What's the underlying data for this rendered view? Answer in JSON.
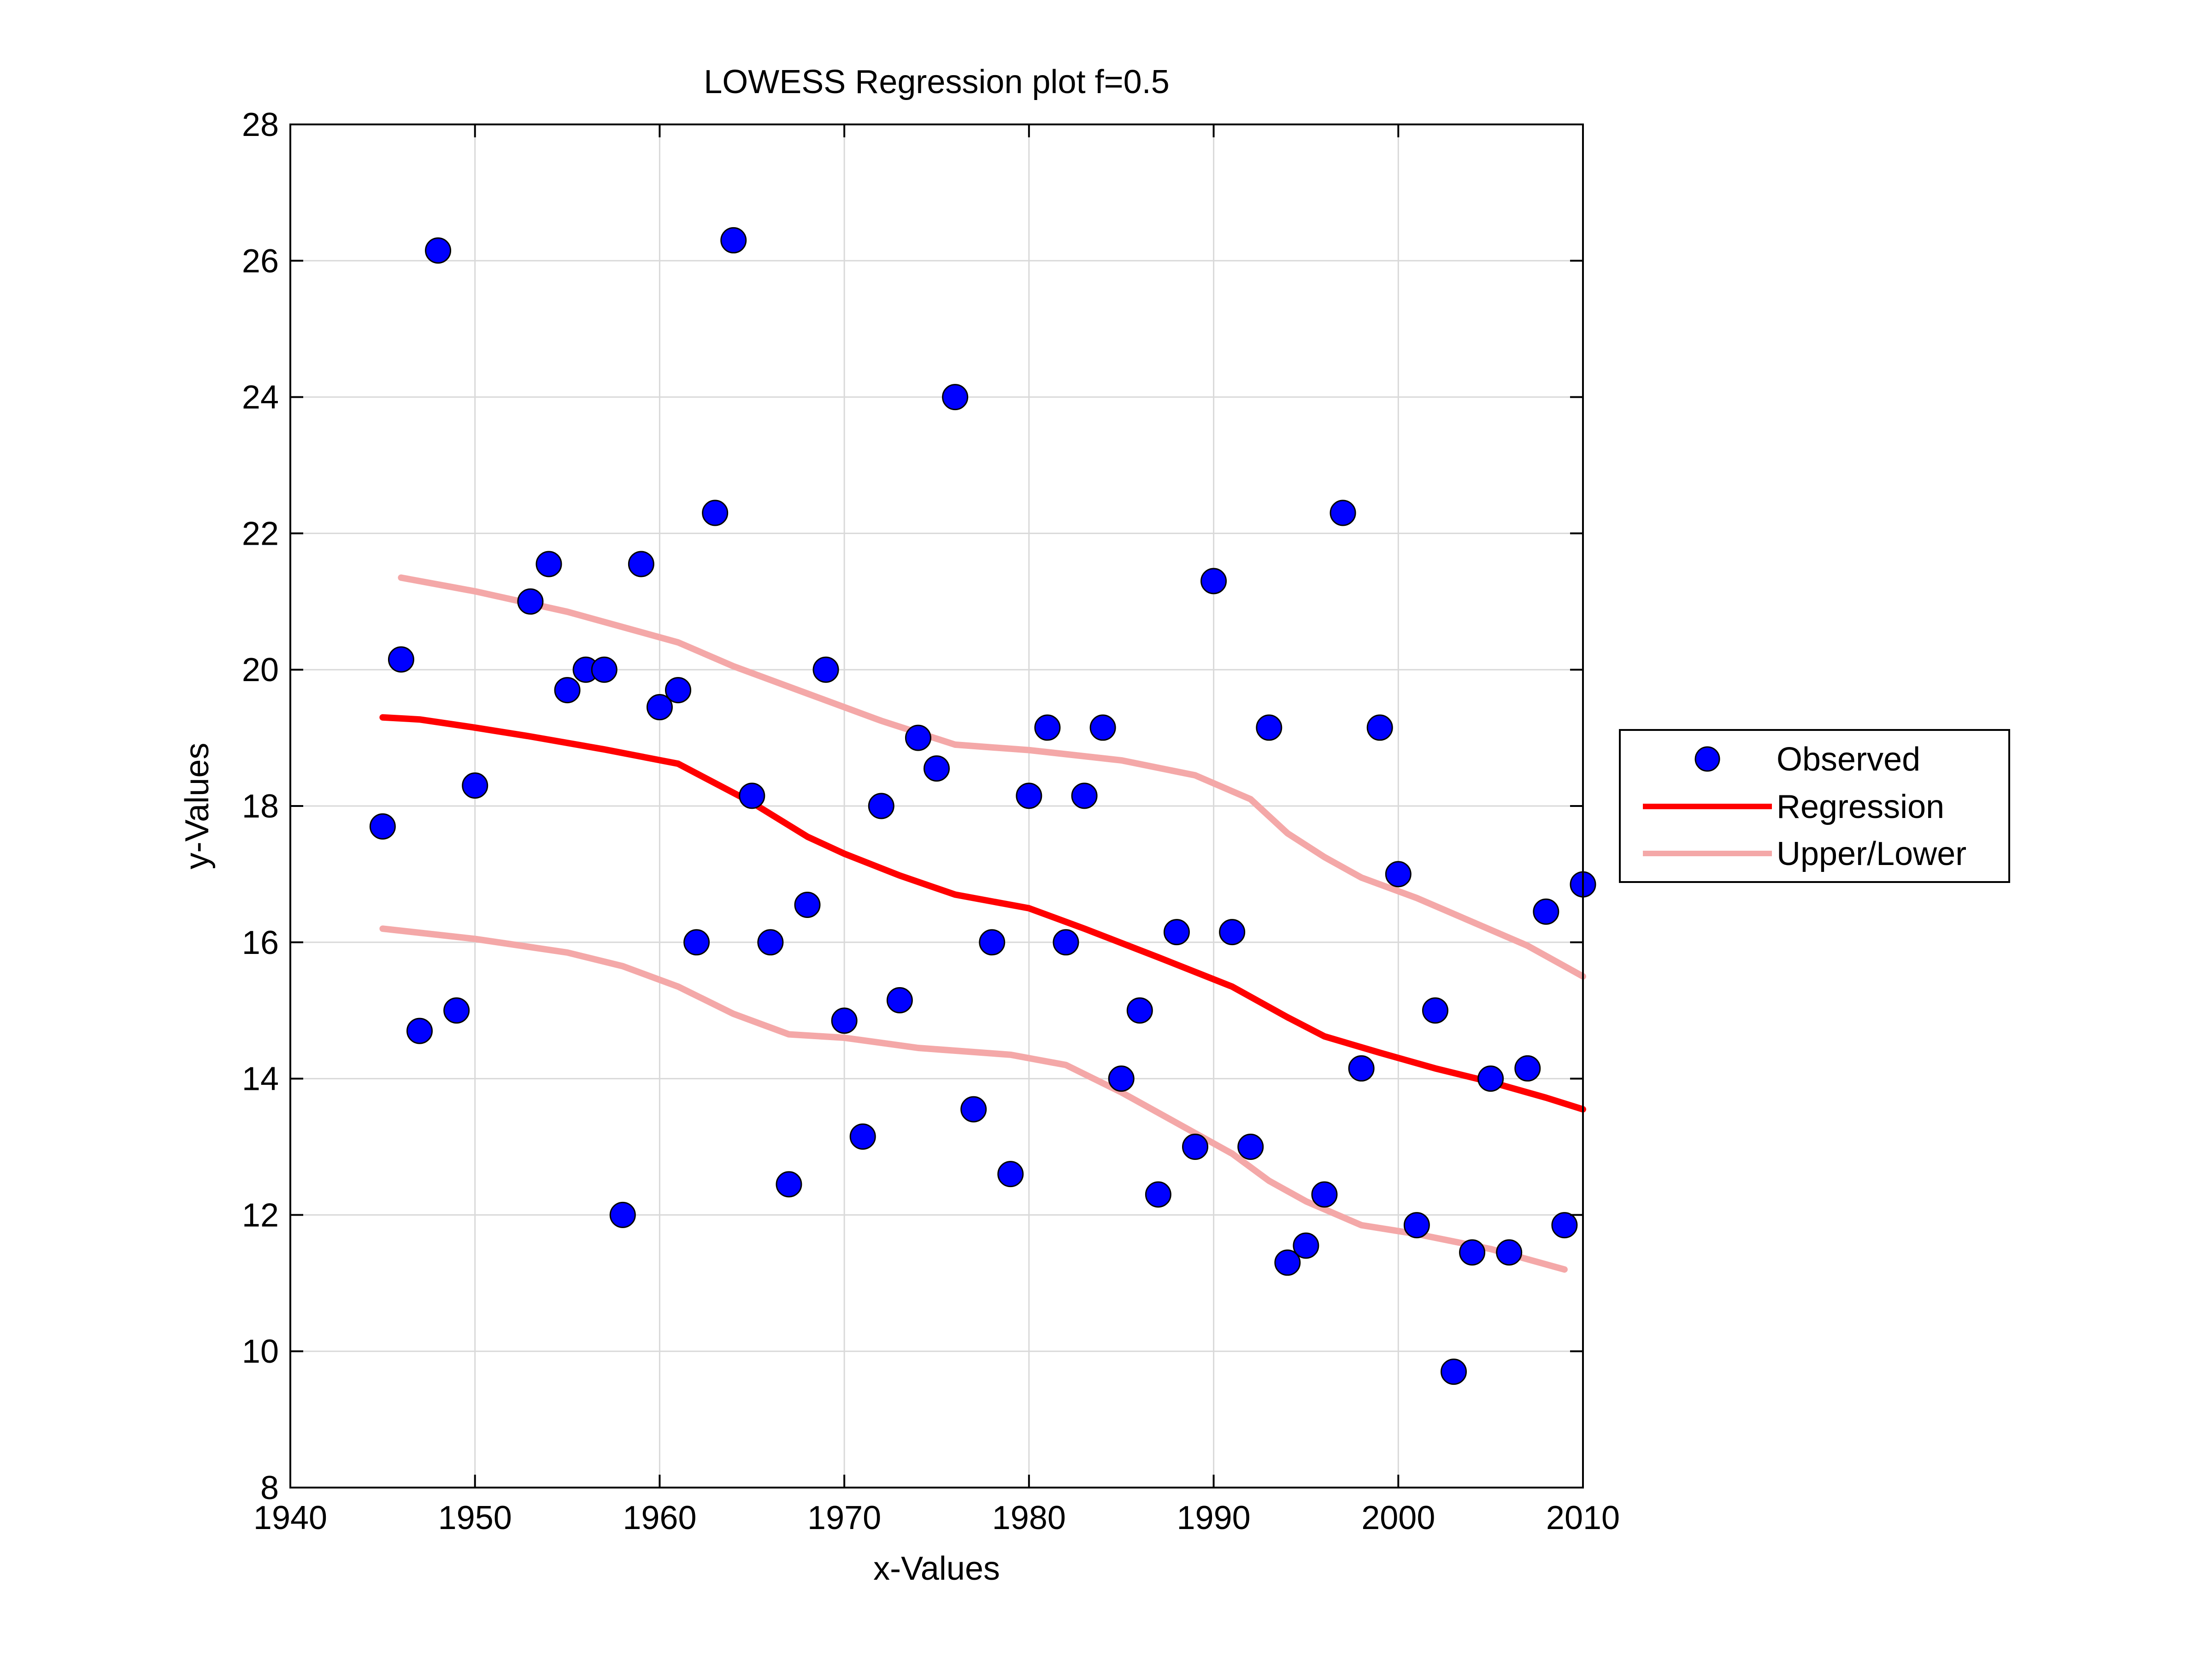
{
  "chart_data": {
    "type": "scatter",
    "title": "LOWESS Regression plot f=0.5",
    "xlabel": "x-Values",
    "ylabel": "y-Values",
    "xlim": [
      1940,
      2010
    ],
    "ylim": [
      8,
      28
    ],
    "xticks": [
      1940,
      1950,
      1960,
      1970,
      1980,
      1990,
      2000,
      2010
    ],
    "yticks": [
      8,
      10,
      12,
      14,
      16,
      18,
      20,
      22,
      24,
      26,
      28
    ],
    "grid": true,
    "legend_position": "outside-right",
    "legend": [
      "Observed",
      "Regression",
      "Upper/Lower"
    ],
    "colors": {
      "observed_fill": "#0000ff",
      "observed_edge": "#000000",
      "regression": "#ff0000",
      "bounds": "#f4a8a8",
      "grid": "#d9d9d9",
      "axes": "#000000"
    },
    "series": [
      {
        "name": "Observed",
        "kind": "scatter",
        "points": [
          [
            1945,
            17.7
          ],
          [
            1946,
            20.15
          ],
          [
            1947,
            14.7
          ],
          [
            1948,
            26.15
          ],
          [
            1949,
            15.0
          ],
          [
            1950,
            18.3
          ],
          [
            1953,
            21.0
          ],
          [
            1954,
            21.55
          ],
          [
            1955,
            19.7
          ],
          [
            1956,
            20.0
          ],
          [
            1957,
            20.0
          ],
          [
            1958,
            12.0
          ],
          [
            1959,
            21.55
          ],
          [
            1960,
            19.45
          ],
          [
            1961,
            19.7
          ],
          [
            1962,
            16.0
          ],
          [
            1963,
            22.3
          ],
          [
            1964,
            26.3
          ],
          [
            1965,
            18.15
          ],
          [
            1966,
            16.0
          ],
          [
            1967,
            12.45
          ],
          [
            1968,
            16.55
          ],
          [
            1969,
            20.0
          ],
          [
            1970,
            14.85
          ],
          [
            1971,
            13.15
          ],
          [
            1972,
            18.0
          ],
          [
            1973,
            15.15
          ],
          [
            1974,
            19.0
          ],
          [
            1975,
            18.55
          ],
          [
            1976,
            24.0
          ],
          [
            1977,
            13.55
          ],
          [
            1978,
            16.0
          ],
          [
            1979,
            12.6
          ],
          [
            1980,
            18.15
          ],
          [
            1981,
            19.15
          ],
          [
            1982,
            16.0
          ],
          [
            1983,
            18.15
          ],
          [
            1984,
            19.15
          ],
          [
            1985,
            14.0
          ],
          [
            1986,
            15.0
          ],
          [
            1987,
            12.3
          ],
          [
            1988,
            16.15
          ],
          [
            1989,
            13.0
          ],
          [
            1990,
            21.3
          ],
          [
            1991,
            16.15
          ],
          [
            1992,
            13.0
          ],
          [
            1993,
            19.15
          ],
          [
            1994,
            11.3
          ],
          [
            1995,
            11.55
          ],
          [
            1996,
            12.3
          ],
          [
            1997,
            22.3
          ],
          [
            1998,
            14.15
          ],
          [
            1999,
            19.15
          ],
          [
            2000,
            17.0
          ],
          [
            2001,
            11.85
          ],
          [
            2002,
            15.0
          ],
          [
            2003,
            9.7
          ],
          [
            2004,
            11.45
          ],
          [
            2005,
            14.0
          ],
          [
            2006,
            11.45
          ],
          [
            2007,
            14.15
          ],
          [
            2008,
            16.45
          ],
          [
            2009,
            11.85
          ],
          [
            2010,
            16.85
          ]
        ]
      },
      {
        "name": "Regression",
        "kind": "line",
        "points": [
          [
            1945,
            19.3
          ],
          [
            1947,
            19.27
          ],
          [
            1950,
            19.15
          ],
          [
            1953,
            19.02
          ],
          [
            1957,
            18.83
          ],
          [
            1961,
            18.62
          ],
          [
            1965,
            18.05
          ],
          [
            1968,
            17.55
          ],
          [
            1970,
            17.3
          ],
          [
            1973,
            16.98
          ],
          [
            1976,
            16.7
          ],
          [
            1980,
            16.5
          ],
          [
            1983,
            16.2
          ],
          [
            1987,
            15.78
          ],
          [
            1991,
            15.35
          ],
          [
            1994,
            14.9
          ],
          [
            1996,
            14.62
          ],
          [
            1999,
            14.38
          ],
          [
            2002,
            14.15
          ],
          [
            2005,
            13.95
          ],
          [
            2008,
            13.72
          ],
          [
            2010,
            13.55
          ]
        ]
      },
      {
        "name": "Upper",
        "legend_group": "Upper/Lower",
        "kind": "line",
        "points": [
          [
            1946,
            21.35
          ],
          [
            1950,
            21.15
          ],
          [
            1955,
            20.85
          ],
          [
            1961,
            20.4
          ],
          [
            1964,
            20.05
          ],
          [
            1968,
            19.65
          ],
          [
            1972,
            19.25
          ],
          [
            1976,
            18.9
          ],
          [
            1980,
            18.82
          ],
          [
            1985,
            18.67
          ],
          [
            1989,
            18.45
          ],
          [
            1992,
            18.1
          ],
          [
            1994,
            17.6
          ],
          [
            1996,
            17.25
          ],
          [
            1998,
            16.95
          ],
          [
            2001,
            16.65
          ],
          [
            2004,
            16.3
          ],
          [
            2007,
            15.95
          ],
          [
            2010,
            15.5
          ]
        ]
      },
      {
        "name": "Lower",
        "legend_group": "Upper/Lower",
        "kind": "line",
        "points": [
          [
            1945,
            16.2
          ],
          [
            1950,
            16.05
          ],
          [
            1955,
            15.85
          ],
          [
            1958,
            15.65
          ],
          [
            1961,
            15.35
          ],
          [
            1964,
            14.95
          ],
          [
            1967,
            14.65
          ],
          [
            1970,
            14.6
          ],
          [
            1974,
            14.45
          ],
          [
            1979,
            14.35
          ],
          [
            1982,
            14.2
          ],
          [
            1985,
            13.8
          ],
          [
            1988,
            13.35
          ],
          [
            1991,
            12.9
          ],
          [
            1993,
            12.5
          ],
          [
            1995,
            12.2
          ],
          [
            1998,
            11.85
          ],
          [
            2001,
            11.72
          ],
          [
            2005,
            11.5
          ],
          [
            2009,
            11.2
          ]
        ]
      }
    ]
  }
}
